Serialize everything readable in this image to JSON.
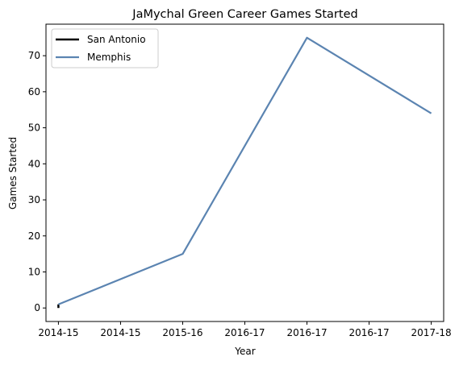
{
  "chart_data": {
    "type": "line",
    "title": "JaMychal Green Career Games Started",
    "xlabel": "Year",
    "ylabel": "Games Started",
    "x_ticks": [
      "2014-15",
      "2014-15",
      "2015-16",
      "2016-17",
      "2016-17",
      "2016-17",
      "2017-18"
    ],
    "xlim": [
      -0.1,
      3.1
    ],
    "ylim": [
      -3.75,
      78.75
    ],
    "y_ticks": [
      0,
      10,
      20,
      30,
      40,
      50,
      60,
      70
    ],
    "grid": false,
    "legend_position": "top-left",
    "series": [
      {
        "name": "San Antonio",
        "color": "#000000",
        "x": [
          0,
          0
        ],
        "y": [
          0,
          1
        ]
      },
      {
        "name": "Memphis",
        "color": "#5b84b1",
        "x": [
          0,
          1,
          2,
          3
        ],
        "y": [
          1,
          15,
          75,
          54
        ]
      }
    ]
  }
}
